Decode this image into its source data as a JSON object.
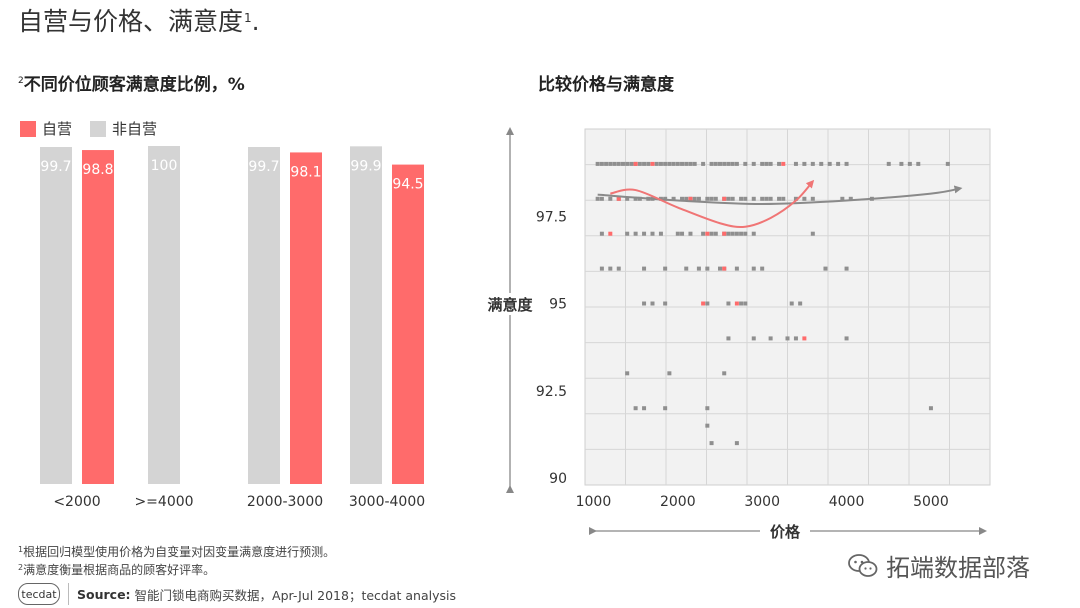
{
  "header": {
    "title": "自营与价格、满意度",
    "title_sup": "1",
    "title_suffix": "."
  },
  "left_panel": {
    "title_sup": "2",
    "title": "不同价位顾客满意度比例，%"
  },
  "right_panel": {
    "title": "比较价格与满意度"
  },
  "colors": {
    "self": "#ff6b6b",
    "non_self": "#d4d4d4",
    "trend_self": "#f07575",
    "trend_non_self": "#8a8a8a"
  },
  "chart_data": [
    {
      "type": "bar",
      "categories": [
        "<2000",
        ">=4000",
        "2000-3000",
        "3000-4000"
      ],
      "series": [
        {
          "name": "非自营",
          "values": [
            99.7,
            100,
            99.7,
            99.9
          ],
          "labels": [
            "99.7",
            "100",
            "99.7",
            "99.9"
          ]
        },
        {
          "name": "自营",
          "values": [
            98.8,
            null,
            98.1,
            94.5
          ],
          "labels": [
            "98.8",
            "",
            "98.1",
            "94.5"
          ]
        }
      ],
      "legend": {
        "position": "top-left",
        "entries": [
          "自营",
          "非自营"
        ]
      },
      "ylim": [
        0,
        100
      ]
    },
    {
      "type": "scatter",
      "xlabel": "价格",
      "ylabel": "满意度",
      "xlim": [
        900,
        5700
      ],
      "ylim": [
        89.8,
        100
      ],
      "xticks": [
        1000,
        2000,
        3000,
        4000,
        5000
      ],
      "yticks": [
        90,
        92.5,
        95,
        97.5
      ],
      "ytick_labels": [
        "90",
        "92.5",
        "95",
        "97.5"
      ],
      "grid": true,
      "series": [
        {
          "name": "非自营",
          "points": [
            [
              1050,
              99
            ],
            [
              1100,
              99
            ],
            [
              1150,
              99
            ],
            [
              1200,
              99
            ],
            [
              1250,
              99
            ],
            [
              1300,
              99
            ],
            [
              1350,
              99
            ],
            [
              1400,
              99
            ],
            [
              1450,
              99
            ],
            [
              1500,
              99
            ],
            [
              1550,
              99
            ],
            [
              1600,
              99
            ],
            [
              1650,
              99
            ],
            [
              1750,
              99
            ],
            [
              1800,
              99
            ],
            [
              1850,
              99
            ],
            [
              1900,
              99
            ],
            [
              1950,
              99
            ],
            [
              2000,
              99
            ],
            [
              2050,
              99
            ],
            [
              2100,
              99
            ],
            [
              2150,
              99
            ],
            [
              2200,
              99
            ],
            [
              2300,
              99
            ],
            [
              2400,
              99
            ],
            [
              2450,
              99
            ],
            [
              2500,
              99
            ],
            [
              2550,
              99
            ],
            [
              2600,
              99
            ],
            [
              2650,
              99
            ],
            [
              2700,
              99
            ],
            [
              2800,
              99
            ],
            [
              2900,
              99
            ],
            [
              3000,
              99
            ],
            [
              3050,
              99
            ],
            [
              3100,
              99
            ],
            [
              3200,
              99
            ],
            [
              3400,
              99
            ],
            [
              3500,
              99
            ],
            [
              3600,
              99
            ],
            [
              3700,
              99
            ],
            [
              3800,
              99
            ],
            [
              3900,
              99
            ],
            [
              4000,
              99
            ],
            [
              4500,
              99
            ],
            [
              4650,
              99
            ],
            [
              4750,
              99
            ],
            [
              4850,
              99
            ],
            [
              5200,
              99
            ],
            [
              1050,
              98
            ],
            [
              1100,
              98
            ],
            [
              1200,
              98
            ],
            [
              1300,
              98
            ],
            [
              1400,
              98
            ],
            [
              1500,
              98
            ],
            [
              1550,
              98
            ],
            [
              1650,
              98
            ],
            [
              1700,
              98
            ],
            [
              1800,
              98
            ],
            [
              1850,
              98
            ],
            [
              1950,
              98
            ],
            [
              2050,
              98
            ],
            [
              2100,
              98
            ],
            [
              2150,
              98
            ],
            [
              2200,
              98
            ],
            [
              2250,
              98
            ],
            [
              2350,
              98
            ],
            [
              2400,
              98
            ],
            [
              2450,
              98
            ],
            [
              2550,
              98
            ],
            [
              2600,
              98
            ],
            [
              2650,
              98
            ],
            [
              2750,
              98
            ],
            [
              2800,
              98
            ],
            [
              2900,
              98
            ],
            [
              3000,
              98
            ],
            [
              3050,
              98
            ],
            [
              3100,
              98
            ],
            [
              3200,
              98
            ],
            [
              3250,
              98
            ],
            [
              3400,
              98
            ],
            [
              3500,
              98
            ],
            [
              3600,
              98
            ],
            [
              3950,
              98
            ],
            [
              4050,
              98
            ],
            [
              4300,
              98
            ],
            [
              1100,
              97
            ],
            [
              1400,
              97
            ],
            [
              1500,
              97
            ],
            [
              1600,
              97
            ],
            [
              1700,
              97
            ],
            [
              1800,
              97
            ],
            [
              2000,
              97
            ],
            [
              2050,
              97
            ],
            [
              2150,
              97
            ],
            [
              2300,
              97
            ],
            [
              2400,
              97
            ],
            [
              2450,
              97
            ],
            [
              2550,
              97
            ],
            [
              2600,
              97
            ],
            [
              2650,
              97
            ],
            [
              2700,
              97
            ],
            [
              2750,
              97
            ],
            [
              2800,
              97
            ],
            [
              2900,
              97
            ],
            [
              3600,
              97
            ],
            [
              1100,
              96
            ],
            [
              1200,
              96
            ],
            [
              1300,
              96
            ],
            [
              1600,
              96
            ],
            [
              1850,
              96
            ],
            [
              2100,
              96
            ],
            [
              2250,
              96
            ],
            [
              2350,
              96
            ],
            [
              2500,
              96
            ],
            [
              2550,
              96
            ],
            [
              2700,
              96
            ],
            [
              2900,
              96
            ],
            [
              3000,
              96
            ],
            [
              3750,
              96
            ],
            [
              4000,
              96
            ],
            [
              1600,
              95
            ],
            [
              1700,
              95
            ],
            [
              1850,
              95
            ],
            [
              2350,
              95
            ],
            [
              2600,
              95
            ],
            [
              2750,
              95
            ],
            [
              2800,
              95
            ],
            [
              3350,
              95
            ],
            [
              3450,
              95
            ],
            [
              2600,
              94
            ],
            [
              2900,
              94
            ],
            [
              3100,
              94
            ],
            [
              3300,
              94
            ],
            [
              3400,
              94
            ],
            [
              4000,
              94
            ],
            [
              1400,
              93
            ],
            [
              1900,
              93
            ],
            [
              2550,
              93
            ],
            [
              1500,
              92
            ],
            [
              1600,
              92
            ],
            [
              1850,
              92
            ],
            [
              2350,
              92
            ],
            [
              5000,
              92
            ],
            [
              2400,
              91
            ],
            [
              2350,
              91.5
            ],
            [
              2700,
              91
            ]
          ]
        },
        {
          "name": "自营",
          "points": [
            [
              1500,
              99
            ],
            [
              1700,
              99
            ],
            [
              3250,
              99
            ],
            [
              1300,
              98
            ],
            [
              2150,
              98
            ],
            [
              2550,
              98
            ],
            [
              1200,
              97
            ],
            [
              2350,
              97
            ],
            [
              2550,
              97
            ],
            [
              2300,
              95
            ],
            [
              2700,
              95
            ],
            [
              2550,
              96
            ],
            [
              3500,
              94
            ]
          ]
        }
      ],
      "trend_lines": [
        {
          "name": "非自营",
          "points": [
            [
              1050,
              98.12
            ],
            [
              2000,
              97.95
            ],
            [
              3000,
              97.85
            ],
            [
              4000,
              97.95
            ],
            [
              5000,
              98.15
            ],
            [
              5350,
              98.3
            ]
          ]
        },
        {
          "name": "自营",
          "points": [
            [
              1200,
              98.15
            ],
            [
              1500,
              98.25
            ],
            [
              2000,
              97.75
            ],
            [
              2500,
              97.3
            ],
            [
              2800,
              97.2
            ],
            [
              3100,
              97.45
            ],
            [
              3400,
              97.95
            ],
            [
              3600,
              98.5
            ]
          ]
        }
      ]
    }
  ],
  "notes": [
    {
      "sup": "1",
      "text": "根据回归模型使用价格为自变量对因变量满意度进行预测。"
    },
    {
      "sup": "2",
      "text": "满意度衡量根据商品的顾客好评率。"
    }
  ],
  "source": {
    "logo_text": "tecdat",
    "label": "Source:",
    "text": "智能门锁电商购买数据，Apr-Jul 2018；tecdat analysis"
  },
  "watermark": {
    "text": "拓端数据部落"
  }
}
